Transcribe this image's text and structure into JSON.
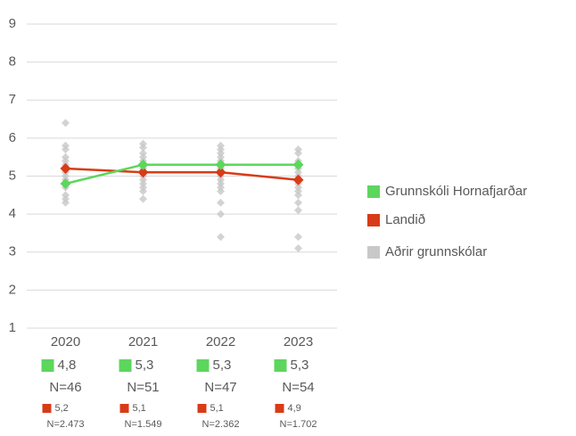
{
  "chart_data": {
    "type": "line",
    "categories": [
      "2020",
      "2021",
      "2022",
      "2023"
    ],
    "ylim": [
      1,
      9
    ],
    "yticks": [
      1,
      2,
      3,
      4,
      5,
      6,
      7,
      8,
      9
    ],
    "grid": true,
    "legend": "right",
    "series": [
      {
        "name": "Grunnskóli Hornafjarðar",
        "type": "line",
        "color": "#5dd65d",
        "values": [
          4.8,
          5.3,
          5.3,
          5.3
        ],
        "value_labels": [
          "4,8",
          "5,3",
          "5,3",
          "5,3"
        ],
        "n_labels": [
          "N=46",
          "N=51",
          "N=47",
          "N=54"
        ]
      },
      {
        "name": "Landið",
        "type": "line",
        "color": "#d83b17",
        "values": [
          5.2,
          5.1,
          5.1,
          4.9
        ],
        "value_labels": [
          "5,2",
          "5,1",
          "5,1",
          "4,9"
        ],
        "n_labels": [
          "N=2.473",
          "N=1.549",
          "N=2.362",
          "N=1.702"
        ]
      },
      {
        "name": "Aðrir grunnskólar",
        "type": "scatter",
        "color": "#c8c8c8",
        "values": [
          [
            6.4,
            5.8,
            5.7,
            5.5,
            5.4,
            5.3,
            5.2,
            5.1,
            5.0,
            4.9,
            4.8,
            4.7,
            4.5,
            4.4,
            4.3
          ],
          [
            5.85,
            5.75,
            5.6,
            5.5,
            5.4,
            5.3,
            5.2,
            5.1,
            5.0,
            4.9,
            4.8,
            4.7,
            4.6,
            4.4
          ],
          [
            5.8,
            5.7,
            5.6,
            5.5,
            5.4,
            5.3,
            5.2,
            5.1,
            5.0,
            4.9,
            4.8,
            4.7,
            4.6,
            4.3,
            4.0,
            3.4
          ],
          [
            5.7,
            5.6,
            5.4,
            5.3,
            5.2,
            5.1,
            5.0,
            4.9,
            4.8,
            4.7,
            4.6,
            4.5,
            4.3,
            4.1,
            3.4,
            3.1
          ]
        ]
      }
    ]
  }
}
